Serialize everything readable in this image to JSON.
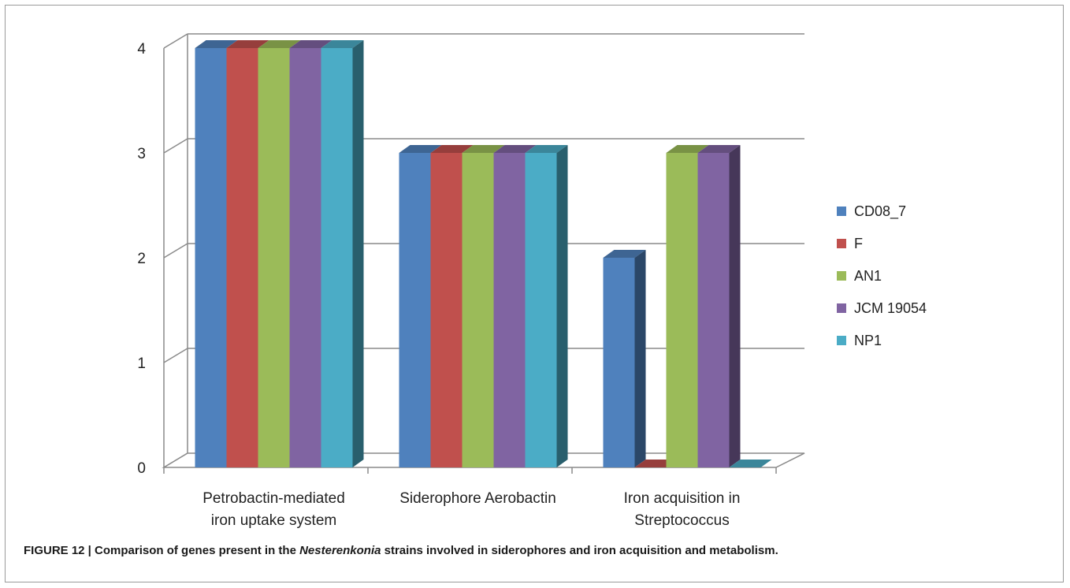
{
  "caption": {
    "label": "FIGURE 12 | Comparison of genes present in the ",
    "genus": "Nesterenkonia",
    "rest": " strains involved in siderophores and iron acquisition and metabolism."
  },
  "chart_data": {
    "type": "bar",
    "style": "3d-clustered-column",
    "title": "",
    "xlabel": "",
    "ylabel": "",
    "ylim": [
      0,
      4
    ],
    "yticks": [
      "0",
      "1",
      "2",
      "3",
      "4"
    ],
    "grid": true,
    "legend_position": "right",
    "categories": [
      [
        "Petrobactin-mediated",
        "iron uptake system"
      ],
      [
        "Siderophore Aerobactin"
      ],
      [
        "Iron acquisition in",
        "Streptococcus"
      ]
    ],
    "series": [
      {
        "name": "CD08_7",
        "color": "#4F81BD",
        "values": [
          4,
          3,
          2
        ]
      },
      {
        "name": "F",
        "color": "#C0504D",
        "values": [
          4,
          3,
          0
        ]
      },
      {
        "name": "AN1",
        "color": "#9BBB59",
        "values": [
          4,
          3,
          3
        ]
      },
      {
        "name": "JCM 19054",
        "color": "#8064A2",
        "values": [
          4,
          3,
          3
        ]
      },
      {
        "name": "NP1",
        "color": "#4BACC6",
        "values": [
          4,
          3,
          0
        ]
      }
    ]
  }
}
